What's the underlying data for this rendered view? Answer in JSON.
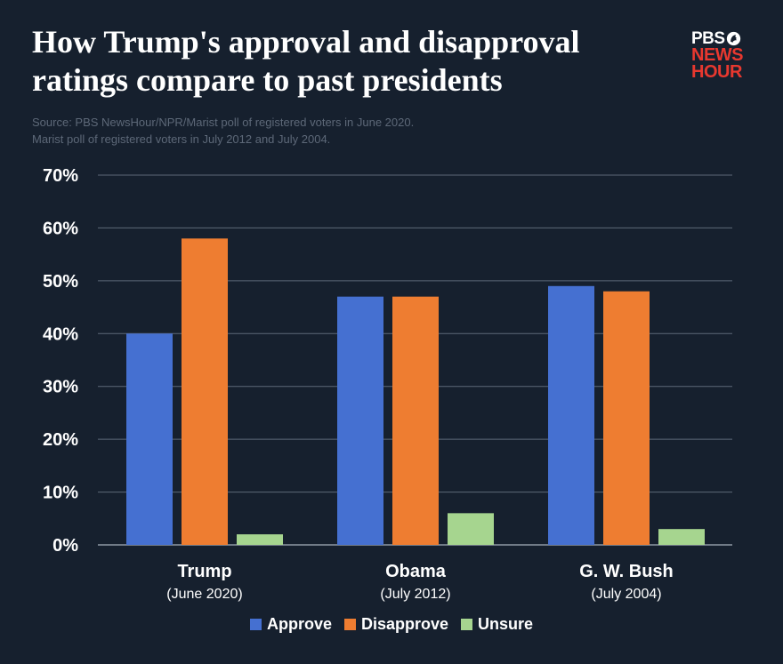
{
  "header": {
    "title_line1": "How Trump's approval and disapproval",
    "title_line2": "ratings compare to past presidents",
    "source_line1": "Source: PBS NewsHour/NPR/Marist poll of registered voters in June 2020.",
    "source_line2": "Marist poll of registered voters in July 2012 and July 2004."
  },
  "logo": {
    "line1": "PBS",
    "line2": "NEWS",
    "line3": "HOUR"
  },
  "chart_data": {
    "type": "bar",
    "categories": [
      "Trump",
      "Obama",
      "G. W. Bush"
    ],
    "category_sublabels": [
      "(June 2020)",
      "(July 2012)",
      "(July 2004)"
    ],
    "series": [
      {
        "name": "Approve",
        "values": [
          40,
          47,
          49
        ],
        "color": "#4570d1"
      },
      {
        "name": "Disapprove",
        "values": [
          58,
          47,
          48
        ],
        "color": "#ee7d31"
      },
      {
        "name": "Unsure",
        "values": [
          2,
          6,
          3
        ],
        "color": "#a6d58f"
      }
    ],
    "yticks": [
      "0%",
      "10%",
      "20%",
      "30%",
      "40%",
      "50%",
      "60%",
      "70%"
    ],
    "ylim": [
      0,
      70
    ],
    "grid": true,
    "legend_position": "bottom-center"
  },
  "colors": {
    "background": "#16202e",
    "gridline": "#5d6878",
    "logo_red": "#e8382f"
  }
}
